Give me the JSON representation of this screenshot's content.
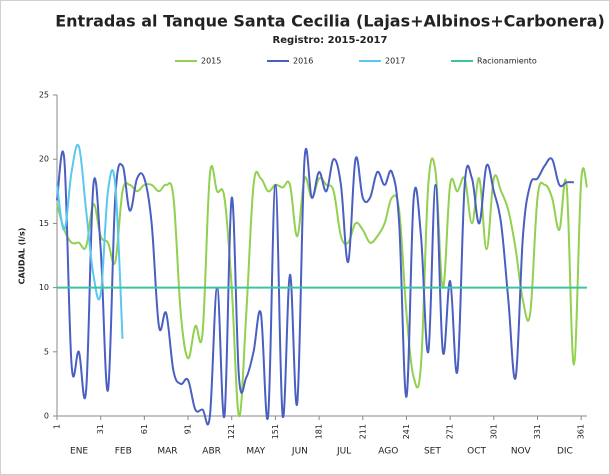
{
  "chart_data": {
    "type": "line",
    "title": "Entradas al Tanque Santa Cecilia (Lajas+Albinos+Carbonera)",
    "subtitle": "Registro: 2015-2017",
    "y_label": "CAUDAL (l/s)",
    "months": [
      "ENE",
      "FEB",
      "MAR",
      "ABR",
      "MAY",
      "JUN",
      "JUL",
      "AGO",
      "SET",
      "OCT",
      "NOV",
      "DIC"
    ],
    "xlim": [
      1,
      365
    ],
    "xticks": [
      1,
      31,
      61,
      91,
      121,
      151,
      181,
      211,
      241,
      271,
      301,
      331,
      361
    ],
    "ylim": [
      0,
      25
    ],
    "yticks": [
      0,
      5,
      10,
      15,
      20,
      25
    ],
    "grid": false,
    "legend": "top",
    "x": [
      1,
      6,
      11,
      16,
      21,
      26,
      31,
      36,
      41,
      46,
      51,
      56,
      61,
      66,
      71,
      76,
      81,
      86,
      91,
      96,
      101,
      106,
      111,
      116,
      121,
      126,
      131,
      136,
      141,
      146,
      151,
      156,
      161,
      166,
      171,
      176,
      181,
      186,
      191,
      196,
      201,
      206,
      211,
      216,
      221,
      226,
      231,
      236,
      241,
      246,
      251,
      256,
      261,
      266,
      271,
      276,
      281,
      286,
      291,
      296,
      301,
      306,
      311,
      316,
      321,
      326,
      331,
      336,
      341,
      346,
      351,
      356,
      361,
      365
    ],
    "series": [
      {
        "name": "2015",
        "color": "#92d050",
        "values": [
          16.5,
          14.5,
          13.5,
          13.5,
          13.2,
          16.5,
          14,
          13.5,
          12,
          17.5,
          18,
          17.5,
          18,
          18,
          17.5,
          18,
          17,
          8,
          4.5,
          7,
          6.5,
          18.8,
          17.5,
          17,
          10,
          0,
          8,
          18,
          18.5,
          17.5,
          18,
          17.8,
          18,
          14,
          18.5,
          17,
          18.5,
          18,
          17.5,
          14,
          13.5,
          15,
          14.5,
          13.5,
          14,
          15,
          17,
          16,
          8,
          3,
          4,
          18,
          19,
          10,
          18,
          17.5,
          18.5,
          15,
          18.5,
          13,
          18.5,
          17.5,
          16,
          13,
          9,
          8,
          17,
          18,
          17,
          14.5,
          18,
          4,
          18.3,
          17.8
        ]
      },
      {
        "name": "2016",
        "color": "#4a5fc1",
        "values": [
          16.8,
          20,
          4,
          5,
          2,
          18,
          13,
          2,
          17,
          19.5,
          16,
          18.5,
          18.5,
          15,
          7,
          8,
          3.5,
          2.5,
          2.8,
          0.5,
          0.5,
          0,
          10,
          0,
          17,
          3,
          3,
          5,
          8,
          0,
          18,
          0,
          11,
          1,
          20,
          17,
          19,
          17.5,
          20,
          18,
          12,
          20,
          17,
          17,
          19,
          18,
          19,
          15,
          1.5,
          17,
          14,
          5,
          18,
          5,
          10.5,
          3.5,
          18,
          18.5,
          15,
          19.5,
          17.5,
          15,
          9,
          3,
          14,
          18,
          18.5,
          19.5,
          20,
          18,
          18.2,
          18.2,
          null,
          null
        ]
      },
      {
        "name": "2017",
        "color": "#5bc8f0",
        "x": [
          1,
          6,
          11,
          16,
          21,
          26,
          31,
          36,
          41,
          46
        ],
        "values": [
          18,
          14.5,
          19,
          21,
          16,
          11,
          9.5,
          17.5,
          18,
          6
        ]
      },
      {
        "name": "Racionamiento",
        "color": "#3cc3a0",
        "x": [
          1,
          365
        ],
        "values": [
          10,
          10
        ]
      }
    ]
  }
}
